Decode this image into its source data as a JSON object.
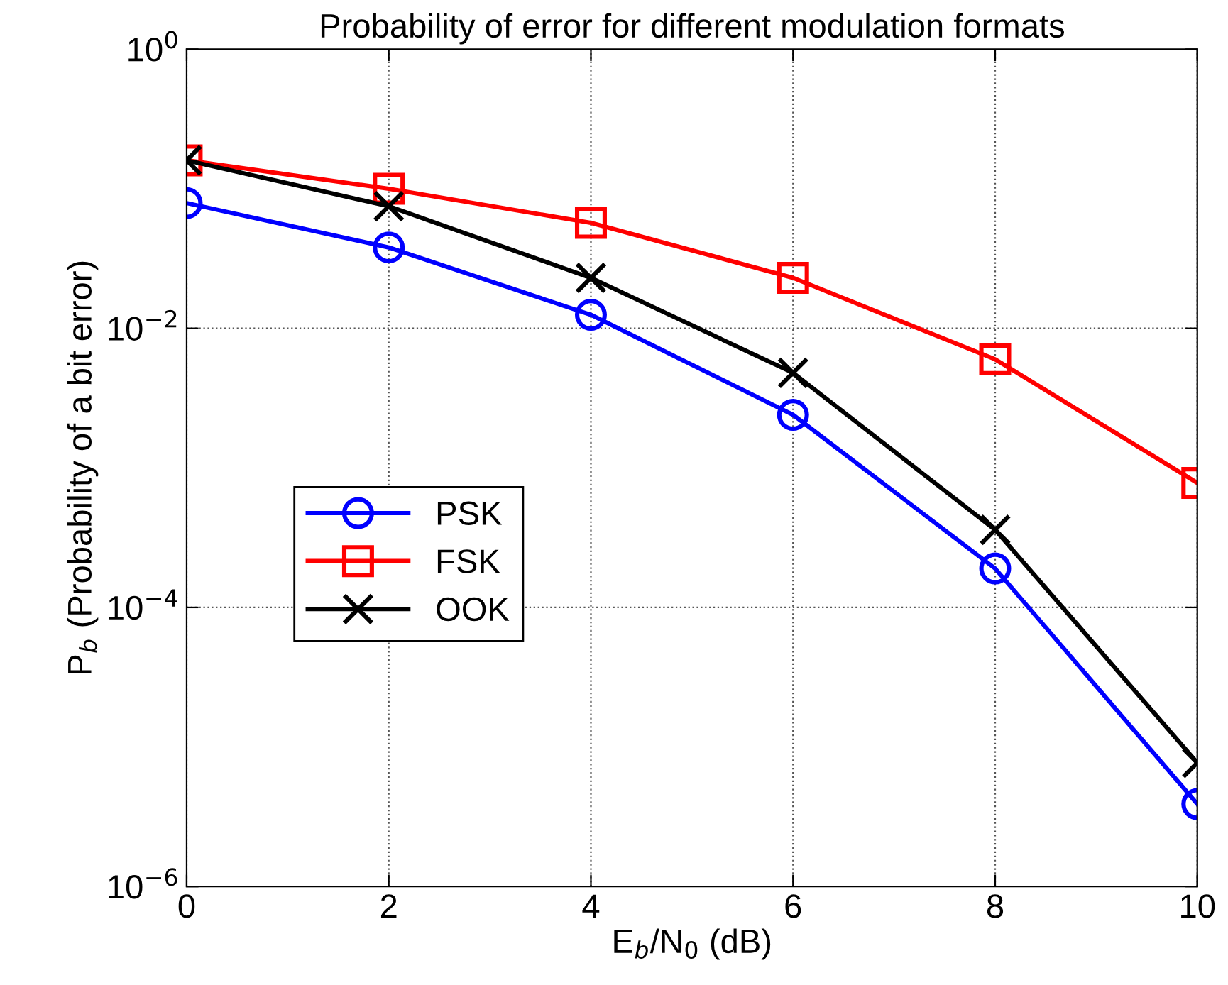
{
  "chart_data": {
    "type": "line",
    "title": "Probability of error for different modulation formats",
    "xlabel": "E$_{b}$/N$_{0}$ (dB)",
    "ylabel": "P$_{b}$ (Probability of a bit error)",
    "x": [
      0,
      2,
      4,
      6,
      8,
      10
    ],
    "series": [
      {
        "name": "PSK",
        "color": "#0000ff",
        "marker": "circle",
        "values": [
          0.079,
          0.038,
          0.0125,
          0.0024,
          0.00019,
          3.9e-06
        ]
      },
      {
        "name": "FSK",
        "color": "#ff0000",
        "marker": "square",
        "values": [
          0.16,
          0.1,
          0.057,
          0.023,
          0.006,
          0.00078
        ]
      },
      {
        "name": "OOK",
        "color": "#000000",
        "marker": "cross",
        "values": [
          0.16,
          0.075,
          0.023,
          0.0048,
          0.00036,
          7.7e-06
        ]
      }
    ],
    "log": "y",
    "xlim": [
      0,
      10
    ],
    "xticks": [
      0,
      2,
      4,
      6,
      8,
      10
    ],
    "ylim": [
      1e-06,
      1
    ],
    "yticks": [
      {
        "value": 1e-06,
        "label": "10$^{−6}$"
      },
      {
        "value": 0.0001,
        "label": "10$^{−4}$"
      },
      {
        "value": 0.01,
        "label": "10$^{−2}$"
      },
      {
        "value": 1,
        "label": "10$^{0}$"
      }
    ],
    "grid": true,
    "legend": "left",
    "line_style": "solid"
  }
}
